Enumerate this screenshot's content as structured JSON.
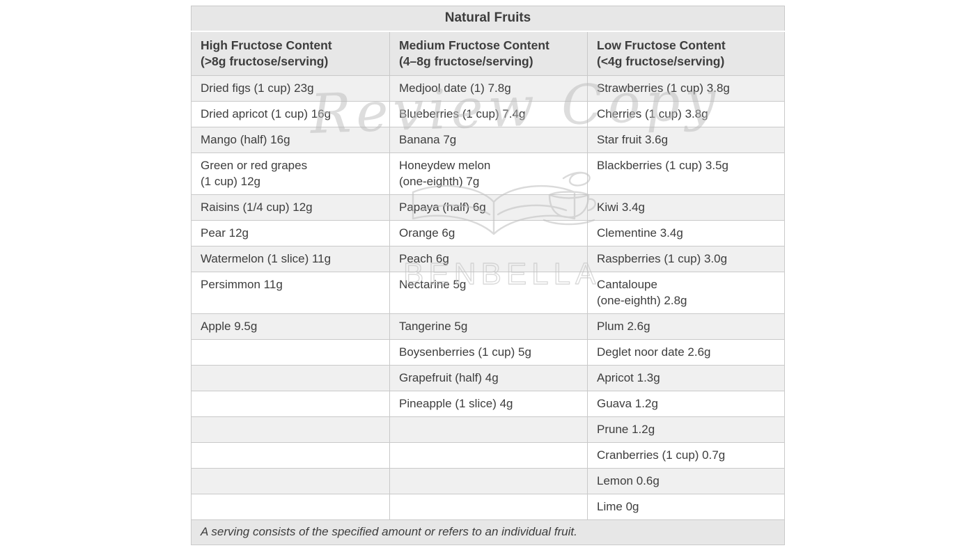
{
  "table": {
    "title": "Natural Fruits",
    "columns": [
      "High Fructose Content\n(>8g fructose/serving)",
      "Medium Fructose Content\n(4–8g fructose/serving)",
      "Low Fructose Content\n(<4g fructose/serving)"
    ],
    "rows": [
      [
        "Dried figs (1 cup) 23g",
        "Medjool date (1) 7.8g",
        "Strawberries (1 cup) 3.8g"
      ],
      [
        "Dried apricot (1 cup) 16g",
        "Blueberries (1 cup) 7.4g",
        "Cherries (1 cup) 3.8g"
      ],
      [
        "Mango (half) 16g",
        "Banana 7g",
        "Star fruit 3.6g"
      ],
      [
        "Green or red grapes\n(1 cup) 12g",
        "Honeydew melon\n(one-eighth) 7g",
        "Blackberries (1 cup) 3.5g"
      ],
      [
        "Raisins (1/4 cup) 12g",
        "Papaya (half) 6g",
        "Kiwi 3.4g"
      ],
      [
        "Pear 12g",
        "Orange 6g",
        "Clementine 3.4g"
      ],
      [
        "Watermelon (1 slice) 11g",
        "Peach 6g",
        "Raspberries (1 cup) 3.0g"
      ],
      [
        "Persimmon 11g",
        "Nectarine 5g",
        "Cantaloupe\n(one-eighth) 2.8g"
      ],
      [
        "Apple 9.5g",
        "Tangerine 5g",
        "Plum 2.6g"
      ],
      [
        "",
        "Boysenberries (1 cup) 5g",
        "Deglet noor date 2.6g"
      ],
      [
        "",
        "Grapefruit (half) 4g",
        "Apricot 1.3g"
      ],
      [
        "",
        "Pineapple (1 slice) 4g",
        "Guava 1.2g"
      ],
      [
        "",
        "",
        "Prune 1.2g"
      ],
      [
        "",
        "",
        "Cranberries (1 cup) 0.7g"
      ],
      [
        "",
        "",
        "Lemon 0.6g"
      ],
      [
        "",
        "",
        "Lime 0g"
      ]
    ],
    "footnote": "A serving consists of the specified amount or refers to an individual fruit."
  },
  "watermark": {
    "text": "Review Copy",
    "brand": "BENBELLA"
  },
  "colors": {
    "header_bg": "#e7e7e7",
    "row_alt_bg": "#f0f0f0",
    "row_bg": "#ffffff",
    "border": "#c9c9c9",
    "text": "#3d3d3d",
    "watermark": "#b9b9b9"
  }
}
